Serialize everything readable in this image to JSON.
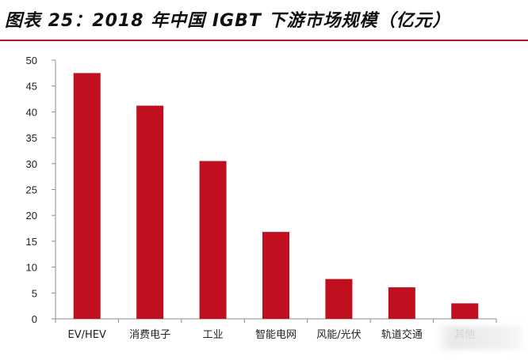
{
  "title": "图表 25：2018 年中国 IGBT 下游市场规模（亿元）",
  "colors": {
    "bar": "#c0101f",
    "rule": "#b0131d",
    "axis": "#8c8c8c"
  },
  "chart_data": {
    "type": "bar",
    "categories": [
      "EV/HEV",
      "消费电子",
      "工业",
      "智能电网",
      "风能/光伏",
      "轨道交通",
      "其他"
    ],
    "values": [
      47.5,
      41.2,
      30.5,
      16.8,
      7.7,
      6.1,
      3.0
    ],
    "ylim": [
      0,
      50
    ],
    "yticks": [
      0,
      5,
      10,
      15,
      20,
      25,
      30,
      35,
      40,
      45,
      50
    ],
    "grid": false,
    "legend": "none"
  }
}
